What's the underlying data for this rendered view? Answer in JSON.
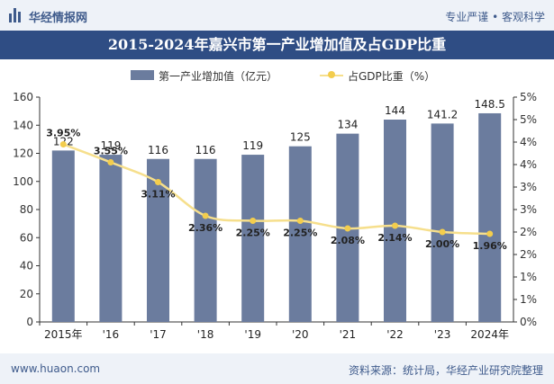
{
  "header": {
    "brand": "华经情报网",
    "slogan": "专业严谨 • 客观科学"
  },
  "footer": {
    "site": "www.huaon.com",
    "source": "资料来源：统计局，华经产业研究院整理"
  },
  "colors": {
    "bar": "#6b7c9e",
    "line": "#f6df8c",
    "dot": "#f3cd4d",
    "title_bg": "#2f4d84"
  },
  "chart_data": {
    "type": "bar",
    "title": "2015-2024年嘉兴市第一产业增加值及占GDP比重",
    "categories": [
      "2015年",
      "'16",
      "'17",
      "'18",
      "'19",
      "'20",
      "'21",
      "'22",
      "'23",
      "2024年"
    ],
    "series": [
      {
        "name": "第一产业增加值（亿元）",
        "type": "bar",
        "axis": "left",
        "values": [
          122,
          119,
          116,
          116,
          119,
          125,
          134,
          144,
          141.2,
          148.5
        ],
        "labels": [
          "122",
          "119",
          "116",
          "116",
          "119",
          "125",
          "134",
          "144",
          "141.2",
          "148.5"
        ]
      },
      {
        "name": "占GDP比重（%）",
        "type": "line",
        "axis": "right",
        "values": [
          3.95,
          3.55,
          3.11,
          2.36,
          2.25,
          2.25,
          2.08,
          2.14,
          2.0,
          1.96
        ],
        "labels": [
          "3.95%",
          "3.55%",
          "3.11%",
          "2.36%",
          "2.25%",
          "2.25%",
          "2.08%",
          "2.14%",
          "2.00%",
          "1.96%"
        ]
      }
    ],
    "y_left": {
      "min": 0,
      "max": 160,
      "step": 20,
      "ticks": [
        "0",
        "20",
        "40",
        "60",
        "80",
        "100",
        "120",
        "140",
        "160"
      ]
    },
    "y_right": {
      "min": 0,
      "max": 5,
      "step": 0.5,
      "ticks": [
        "0%",
        "1%",
        "1%",
        "2%",
        "2%",
        "3%",
        "3%",
        "4%",
        "4%",
        "5%",
        "5%"
      ]
    },
    "legend_position": "top",
    "grid": false
  }
}
